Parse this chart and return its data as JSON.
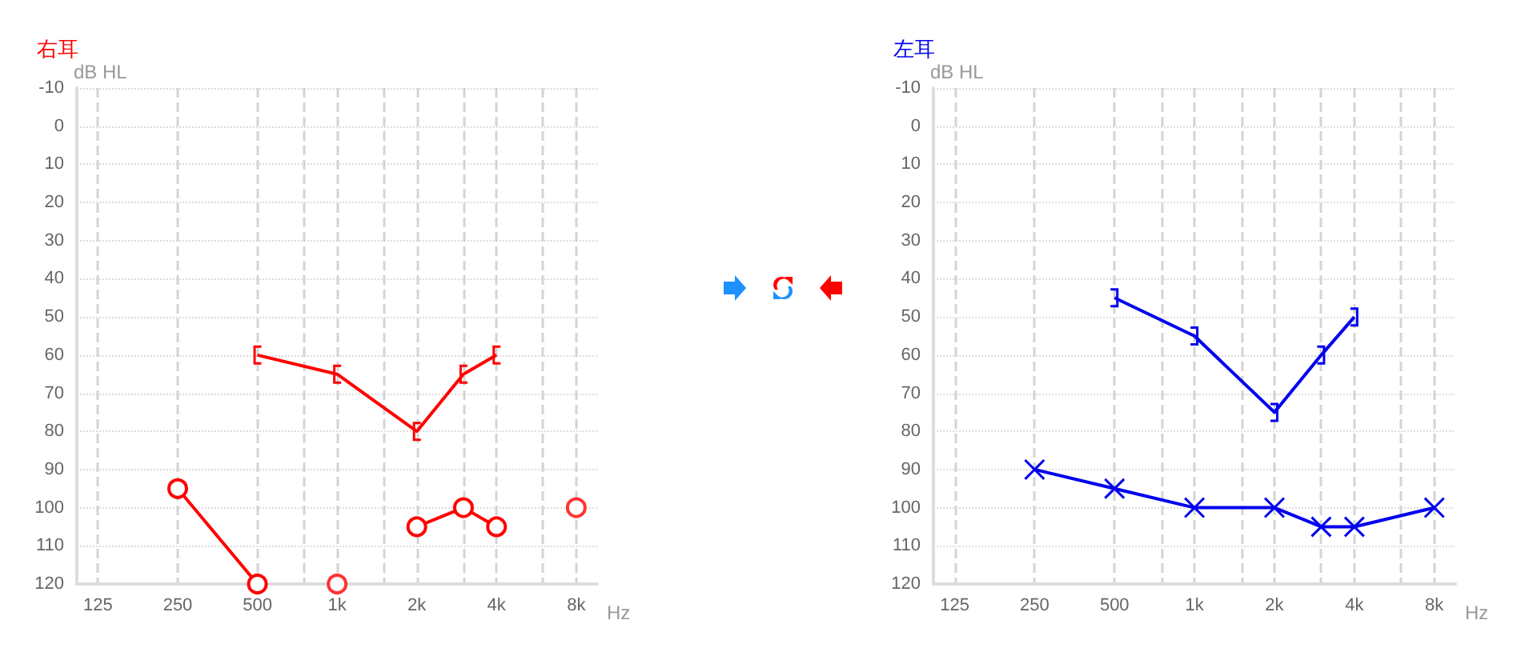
{
  "chart_data": [
    {
      "type": "line",
      "title": "右耳",
      "ylabel": "dB HL",
      "xlabel": "Hz",
      "log": "x",
      "grid": true,
      "xlim": [
        104,
        9600
      ],
      "xticks": [
        {
          "value": 125,
          "label": "125"
        },
        {
          "value": 250,
          "label": "250"
        },
        {
          "value": 500,
          "label": "500"
        },
        {
          "value": 750,
          "label": null
        },
        {
          "value": 1000,
          "label": "1k"
        },
        {
          "value": 1500,
          "label": null
        },
        {
          "value": 2000,
          "label": "2k"
        },
        {
          "value": 3000,
          "label": null
        },
        {
          "value": 4000,
          "label": "4k"
        },
        {
          "value": 6000,
          "label": null
        },
        {
          "value": 8000,
          "label": "8k"
        }
      ],
      "ylim": [
        120,
        -10
      ],
      "yticks": [
        -10,
        0,
        10,
        20,
        30,
        40,
        50,
        60,
        70,
        80,
        90,
        100,
        110,
        120
      ],
      "series": [
        {
          "color": "#ff0000",
          "marker": "square",
          "x": [
            500,
            1000,
            2000,
            3000,
            4000
          ],
          "values": [
            60,
            65,
            80,
            65,
            60
          ]
        },
        {
          "color": "#ff0000",
          "marker": "circle",
          "x": [
            250,
            500,
            1000,
            2000,
            3000,
            4000
          ],
          "values": [
            95,
            120,
            null,
            105,
            100,
            105
          ]
        },
        {
          "type": "scatter",
          "color": "#ff0000",
          "marker": "circle",
          "x": [
            1000,
            8000
          ],
          "values": [
            120,
            100
          ]
        }
      ]
    },
    {
      "type": "line",
      "title": "左耳",
      "ylabel": "dB HL",
      "xlabel": "Hz",
      "log": "x",
      "grid": true,
      "xlim": [
        104,
        9600
      ],
      "xticks": [
        {
          "value": 125,
          "label": "125"
        },
        {
          "value": 250,
          "label": "250"
        },
        {
          "value": 500,
          "label": "500"
        },
        {
          "value": 750,
          "label": null
        },
        {
          "value": 1000,
          "label": "1k"
        },
        {
          "value": 1500,
          "label": null
        },
        {
          "value": 2000,
          "label": "2k"
        },
        {
          "value": 3000,
          "label": null
        },
        {
          "value": 4000,
          "label": "4k"
        },
        {
          "value": 6000,
          "label": null
        },
        {
          "value": 8000,
          "label": "8k"
        }
      ],
      "ylim": [
        120,
        -10
      ],
      "yticks": [
        -10,
        0,
        10,
        20,
        30,
        40,
        50,
        60,
        70,
        80,
        90,
        100,
        110,
        120
      ],
      "series": [
        {
          "color": "#0000ee",
          "marker": "square",
          "x": [
            500,
            1000,
            2000,
            3000,
            4000
          ],
          "values": [
            45,
            55,
            75,
            60,
            50
          ]
        },
        {
          "color": "#0000ee",
          "marker": "cross",
          "x": [
            250,
            500,
            1000,
            2000,
            3000,
            4000,
            8000
          ],
          "values": [
            90,
            95,
            100,
            100,
            105,
            105,
            100
          ]
        }
      ]
    }
  ]
}
